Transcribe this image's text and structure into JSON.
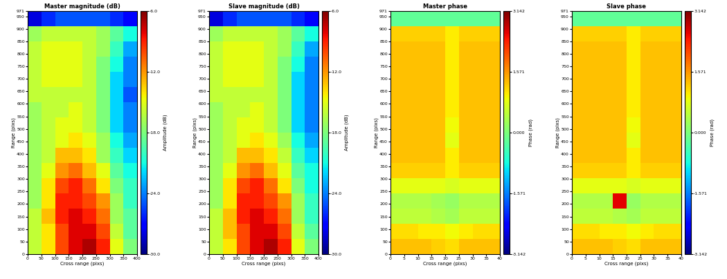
{
  "chart_data": [
    {
      "type": "heatmap",
      "title": "Master magnitude (dB)",
      "x_label": "Cross range (pixs)",
      "y_label": "Range (pixs)",
      "xlim": [
        0,
        400
      ],
      "xticks": [
        0,
        50,
        100,
        150,
        200,
        250,
        300,
        350,
        400
      ],
      "ylim": [
        0,
        971
      ],
      "yticks": [
        0,
        50,
        100,
        150,
        200,
        250,
        300,
        350,
        400,
        450,
        500,
        550,
        600,
        650,
        700,
        750,
        800,
        850,
        900,
        950,
        971
      ],
      "color": "jet",
      "colorbar": {
        "label": "Amplitude (dB)",
        "range": [
          -30.0,
          -6.0
        ],
        "ticks": [
          -6.0,
          -12.0,
          -18.0,
          -24.0,
          -30.0
        ]
      },
      "cells": [
        [
          -16,
          -14,
          -10,
          -8,
          -7,
          -9,
          -15,
          -18
        ],
        [
          -16,
          -14,
          -10,
          -8,
          -8,
          -10,
          -16,
          -19
        ],
        [
          -16,
          -13,
          -9,
          -8,
          -9,
          -11,
          -17,
          -19
        ],
        [
          -17,
          -14,
          -9,
          -9,
          -10,
          -12,
          -17,
          -20
        ],
        [
          -17,
          -14,
          -10,
          -9,
          -11,
          -14,
          -18,
          -20
        ],
        [
          -17,
          -15,
          -12,
          -11,
          -13,
          -15,
          -19,
          -21
        ],
        [
          -17,
          -16,
          -13,
          -13,
          -14,
          -17,
          -20,
          -22
        ],
        [
          -17,
          -16,
          -15,
          -14,
          -15,
          -17,
          -21,
          -23
        ],
        [
          -17,
          -16,
          -15,
          -15,
          -16,
          -18,
          -22,
          -24
        ],
        [
          -17,
          -16,
          -16,
          -15,
          -16,
          -18,
          -22,
          -24
        ],
        [
          -16,
          -16,
          -16,
          -16,
          -16,
          -18,
          -22,
          -25
        ],
        [
          -16,
          -15,
          -15,
          -15,
          -16,
          -18,
          -22,
          -24
        ],
        [
          -16,
          -15,
          -15,
          -15,
          -16,
          -18,
          -21,
          -24
        ],
        [
          -16,
          -15,
          -15,
          -15,
          -16,
          -17,
          -20,
          -23
        ],
        [
          -17,
          -16,
          -16,
          -16,
          -16,
          -17,
          -19,
          -21
        ],
        [
          -28,
          -26,
          -25,
          -25,
          -25,
          -25,
          -26,
          -27
        ]
      ]
    },
    {
      "type": "heatmap",
      "title": "Slave magnitude (dB)",
      "x_label": "Cross range (pixs)",
      "y_label": "Range (pixs)",
      "xlim": [
        0,
        400
      ],
      "xticks": [
        0,
        50,
        100,
        150,
        200,
        250,
        300,
        350,
        400
      ],
      "ylim": [
        0,
        971
      ],
      "yticks": [
        0,
        50,
        100,
        150,
        200,
        250,
        300,
        350,
        400,
        450,
        500,
        550,
        600,
        650,
        700,
        750,
        800,
        850,
        900,
        950,
        971
      ],
      "color": "jet",
      "colorbar": {
        "label": "Amplitude (dB)",
        "range": [
          -30.0,
          -6.0
        ],
        "ticks": [
          -6.0,
          -12.0,
          -18.0,
          -24.0,
          -30.0
        ]
      },
      "cells": [
        [
          -16,
          -14,
          -10,
          -8,
          -7,
          -9,
          -15,
          -18
        ],
        [
          -16,
          -13,
          -10,
          -8,
          -8,
          -10,
          -16,
          -19
        ],
        [
          -16,
          -13,
          -9,
          -8,
          -9,
          -11,
          -17,
          -20
        ],
        [
          -17,
          -14,
          -9,
          -9,
          -10,
          -12,
          -17,
          -20
        ],
        [
          -17,
          -14,
          -10,
          -9,
          -11,
          -14,
          -18,
          -21
        ],
        [
          -17,
          -15,
          -12,
          -11,
          -13,
          -15,
          -19,
          -21
        ],
        [
          -17,
          -16,
          -13,
          -13,
          -14,
          -16,
          -20,
          -22
        ],
        [
          -17,
          -16,
          -15,
          -14,
          -15,
          -17,
          -21,
          -23
        ],
        [
          -17,
          -16,
          -15,
          -15,
          -16,
          -18,
          -22,
          -24
        ],
        [
          -17,
          -16,
          -16,
          -15,
          -16,
          -18,
          -22,
          -24
        ],
        [
          -16,
          -16,
          -16,
          -16,
          -16,
          -18,
          -22,
          -24
        ],
        [
          -16,
          -15,
          -15,
          -15,
          -16,
          -18,
          -22,
          -24
        ],
        [
          -16,
          -15,
          -15,
          -15,
          -16,
          -18,
          -21,
          -24
        ],
        [
          -16,
          -15,
          -15,
          -15,
          -16,
          -17,
          -20,
          -23
        ],
        [
          -17,
          -16,
          -16,
          -16,
          -16,
          -17,
          -19,
          -21
        ],
        [
          -28,
          -26,
          -25,
          -25,
          -25,
          -25,
          -26,
          -27
        ]
      ]
    },
    {
      "type": "heatmap",
      "title": "Master phase",
      "x_label": "Cross range (pixs)",
      "y_label": "Range (pixs)",
      "xlim": [
        0,
        40
      ],
      "xticks": [
        0,
        5,
        10,
        15,
        20,
        25,
        30,
        35,
        40
      ],
      "ylim": [
        0,
        971
      ],
      "yticks": [
        0,
        50,
        100,
        150,
        200,
        250,
        300,
        350,
        400,
        450,
        500,
        550,
        600,
        650,
        700,
        750,
        800,
        850,
        900,
        950,
        971
      ],
      "color": "jet",
      "colorbar": {
        "label": "Phase (rad)",
        "range": [
          -3.142,
          3.142
        ],
        "ticks": [
          3.142,
          1.571,
          {
            "value": 0,
            "label": "0.000"
          },
          -1.571,
          -3.142
        ]
      },
      "cells": [
        [
          1.3,
          1.3,
          1.3,
          1.2,
          1.1,
          1.3,
          1.3,
          1.3
        ],
        [
          1.1,
          1.1,
          1.0,
          1.0,
          0.9,
          1.0,
          1.1,
          1.1
        ],
        [
          0.5,
          0.5,
          0.5,
          0.4,
          0.3,
          0.5,
          0.5,
          0.5
        ],
        [
          0.4,
          0.4,
          0.4,
          0.3,
          0.2,
          0.4,
          0.4,
          0.4
        ],
        [
          0.8,
          0.8,
          0.8,
          0.8,
          0.7,
          0.8,
          0.8,
          0.8
        ],
        [
          1.2,
          1.2,
          1.2,
          1.2,
          1.0,
          1.2,
          1.2,
          1.2
        ],
        [
          1.3,
          1.3,
          1.3,
          1.3,
          1.0,
          1.3,
          1.3,
          1.3
        ],
        [
          1.3,
          1.3,
          1.3,
          1.3,
          0.8,
          1.3,
          1.3,
          1.3
        ],
        [
          1.3,
          1.3,
          1.3,
          1.3,
          0.9,
          1.3,
          1.3,
          1.3
        ],
        [
          1.3,
          1.3,
          1.3,
          1.3,
          1.0,
          1.3,
          1.3,
          1.3
        ],
        [
          1.3,
          1.3,
          1.3,
          1.3,
          1.0,
          1.3,
          1.3,
          1.3
        ],
        [
          1.3,
          1.3,
          1.3,
          1.3,
          1.0,
          1.3,
          1.3,
          1.3
        ],
        [
          1.3,
          1.3,
          1.3,
          1.3,
          1.0,
          1.3,
          1.3,
          1.3
        ],
        [
          1.3,
          1.3,
          1.3,
          1.3,
          1.0,
          1.3,
          1.3,
          1.3
        ],
        [
          1.2,
          1.2,
          1.2,
          1.2,
          1.0,
          1.2,
          1.2,
          1.2
        ],
        [
          -0.2,
          -0.2,
          -0.2,
          -0.2,
          -0.2,
          -0.2,
          -0.2,
          -0.2
        ]
      ]
    },
    {
      "type": "heatmap",
      "title": "Slave phase",
      "x_label": "Cross range (pixs)",
      "y_label": "Range (pixs)",
      "xlim": [
        0,
        40
      ],
      "xticks": [
        0,
        5,
        10,
        15,
        20,
        25,
        30,
        35,
        40
      ],
      "ylim": [
        0,
        971
      ],
      "yticks": [
        0,
        50,
        100,
        150,
        200,
        250,
        300,
        350,
        400,
        450,
        500,
        550,
        600,
        650,
        700,
        750,
        800,
        850,
        900,
        950,
        971
      ],
      "color": "jet",
      "colorbar": {
        "label": "Phase (rad)",
        "range": [
          -3.142,
          3.142
        ],
        "ticks": [
          3.142,
          1.571,
          {
            "value": 0,
            "label": "0.000"
          },
          -1.571,
          -3.142
        ]
      },
      "cells": [
        [
          1.3,
          1.3,
          1.3,
          1.2,
          1.1,
          1.3,
          1.3,
          1.3
        ],
        [
          1.1,
          1.1,
          1.0,
          1.0,
          0.9,
          1.0,
          1.1,
          1.1
        ],
        [
          0.5,
          0.5,
          0.5,
          0.4,
          0.3,
          0.5,
          0.5,
          0.5
        ],
        [
          0.4,
          0.4,
          0.4,
          2.6,
          0.2,
          0.4,
          0.4,
          0.4
        ],
        [
          0.8,
          0.8,
          0.8,
          0.8,
          0.7,
          0.8,
          0.8,
          0.8
        ],
        [
          1.2,
          1.2,
          1.2,
          1.2,
          1.0,
          1.2,
          1.2,
          1.2
        ],
        [
          1.3,
          1.3,
          1.3,
          1.3,
          1.0,
          1.3,
          1.3,
          1.3
        ],
        [
          1.3,
          1.3,
          1.3,
          1.3,
          0.8,
          1.3,
          1.3,
          1.3
        ],
        [
          1.3,
          1.3,
          1.3,
          1.3,
          0.9,
          1.3,
          1.3,
          1.3
        ],
        [
          1.3,
          1.3,
          1.3,
          1.3,
          1.0,
          1.3,
          1.3,
          1.3
        ],
        [
          1.3,
          1.3,
          1.3,
          1.3,
          1.0,
          1.3,
          1.3,
          1.3
        ],
        [
          1.3,
          1.3,
          1.3,
          1.3,
          1.0,
          1.3,
          1.3,
          1.3
        ],
        [
          1.3,
          1.3,
          1.3,
          1.3,
          1.0,
          1.3,
          1.3,
          1.3
        ],
        [
          1.3,
          1.3,
          1.3,
          1.3,
          1.0,
          1.3,
          1.3,
          1.3
        ],
        [
          1.2,
          1.2,
          1.2,
          1.2,
          1.0,
          1.2,
          1.2,
          1.2
        ],
        [
          -0.2,
          -0.2,
          -0.2,
          -0.2,
          -0.2,
          -0.2,
          -0.2,
          -0.2
        ]
      ]
    }
  ]
}
